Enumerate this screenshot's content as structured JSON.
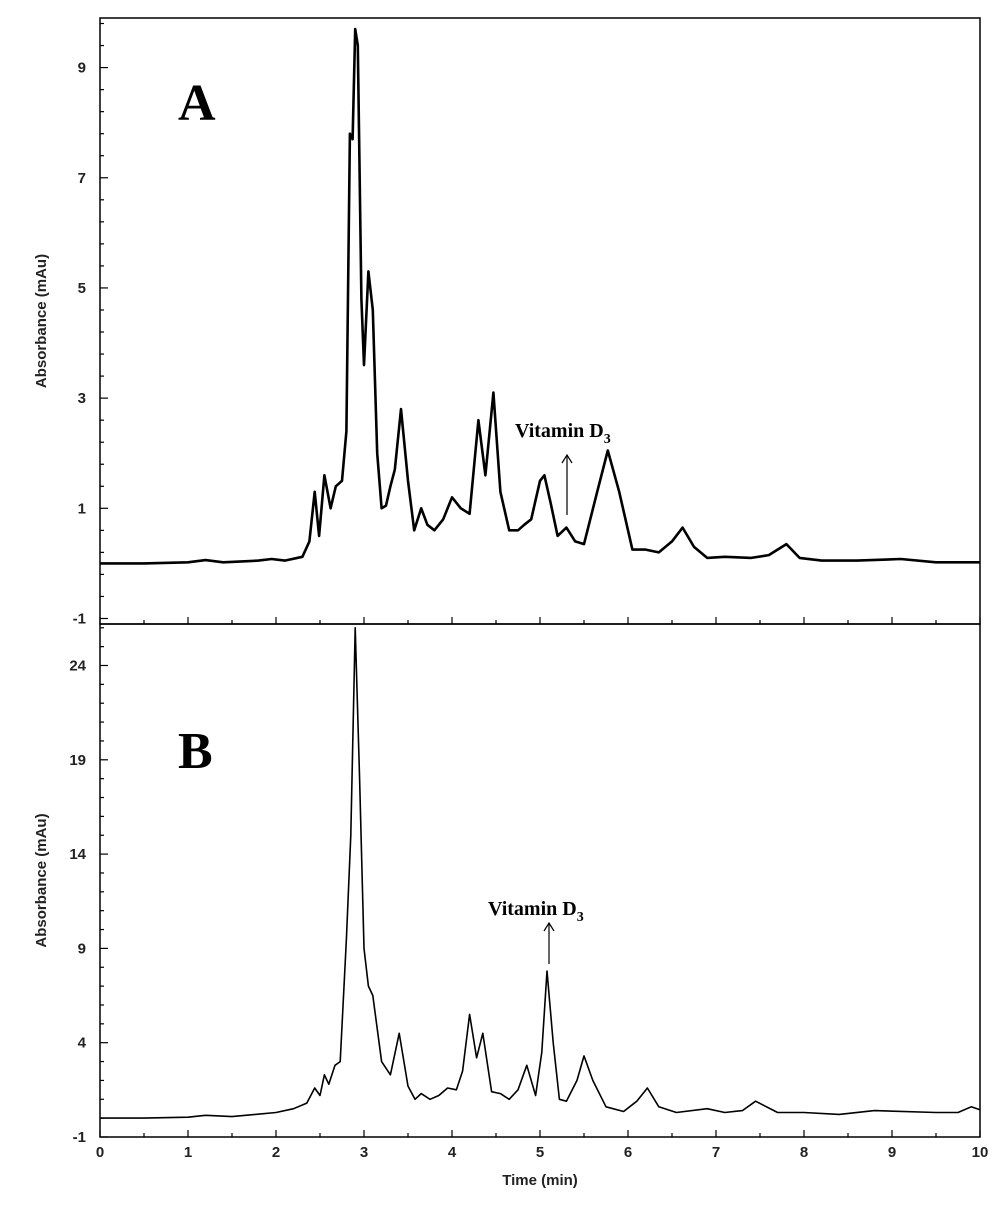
{
  "chart_data": [
    {
      "type": "line",
      "panel_label": "A",
      "xlabel": "",
      "ylabel": "Absorbance  (mAu)",
      "xlim": [
        0,
        10
      ],
      "ylim": [
        -1.1,
        9.9
      ],
      "y_ticks": [
        -1,
        1,
        3,
        5,
        7,
        9
      ],
      "x_ticks": [],
      "grid": false,
      "annotation": {
        "text": "Vitamin  D",
        "subscript": "3",
        "x": 5.3,
        "y": 0.65
      },
      "series": [
        {
          "x": [
            0,
            0.5,
            1.0,
            1.2,
            1.4,
            1.8,
            1.95,
            2.1,
            2.3,
            2.38,
            2.44,
            2.49,
            2.55,
            2.62,
            2.68,
            2.75,
            2.8,
            2.84,
            2.87,
            2.9,
            2.93,
            2.97,
            3.0,
            3.05,
            3.1,
            3.15,
            3.2,
            3.25,
            3.3,
            3.35,
            3.42,
            3.5,
            3.57,
            3.65,
            3.72,
            3.8,
            3.9,
            4.0,
            4.1,
            4.2,
            4.3,
            4.38,
            4.47,
            4.55,
            4.65,
            4.75,
            4.82,
            4.9,
            5.0,
            5.05,
            5.12,
            5.2,
            5.3,
            5.4,
            5.5,
            5.65,
            5.77,
            5.9,
            6.05,
            6.2,
            6.35,
            6.5,
            6.62,
            6.75,
            6.9,
            7.1,
            7.4,
            7.6,
            7.8,
            7.95,
            8.2,
            8.6,
            9.1,
            9.5,
            10.0
          ],
          "y": [
            0.0,
            0.0,
            0.02,
            0.06,
            0.02,
            0.05,
            0.08,
            0.05,
            0.12,
            0.4,
            1.3,
            0.5,
            1.6,
            1.0,
            1.4,
            1.5,
            2.4,
            7.8,
            7.7,
            9.7,
            9.4,
            4.8,
            3.6,
            5.3,
            4.6,
            2.0,
            1.0,
            1.05,
            1.4,
            1.7,
            2.8,
            1.5,
            0.6,
            1.0,
            0.7,
            0.6,
            0.8,
            1.2,
            1.0,
            0.9,
            2.6,
            1.6,
            3.1,
            1.3,
            0.6,
            0.6,
            0.7,
            0.8,
            1.5,
            1.6,
            1.1,
            0.5,
            0.65,
            0.4,
            0.35,
            1.3,
            2.05,
            1.3,
            0.25,
            0.25,
            0.2,
            0.4,
            0.65,
            0.3,
            0.1,
            0.12,
            0.1,
            0.15,
            0.35,
            0.1,
            0.05,
            0.05,
            0.08,
            0.02,
            0.02
          ]
        }
      ]
    },
    {
      "type": "line",
      "panel_label": "B",
      "xlabel": "Time (min)",
      "ylabel": "Absorbance (mAu)",
      "xlim": [
        0,
        10
      ],
      "ylim": [
        -1,
        26.2
      ],
      "y_ticks": [
        -1,
        4,
        9,
        14,
        19,
        24
      ],
      "x_ticks": [
        0,
        1,
        2,
        3,
        4,
        5,
        6,
        7,
        8,
        9,
        10
      ],
      "grid": false,
      "annotation": {
        "text": "Vitamin  D",
        "subscript": "3",
        "x": 5.08,
        "y": 7.8
      },
      "series": [
        {
          "x": [
            0,
            0.5,
            1.0,
            1.2,
            1.5,
            2.0,
            2.2,
            2.35,
            2.44,
            2.5,
            2.55,
            2.6,
            2.67,
            2.73,
            2.8,
            2.85,
            2.9,
            2.95,
            3.0,
            3.05,
            3.1,
            3.2,
            3.3,
            3.4,
            3.5,
            3.58,
            3.65,
            3.75,
            3.85,
            3.95,
            4.05,
            4.12,
            4.2,
            4.28,
            4.35,
            4.45,
            4.55,
            4.65,
            4.75,
            4.85,
            4.95,
            5.02,
            5.08,
            5.15,
            5.22,
            5.3,
            5.42,
            5.5,
            5.6,
            5.75,
            5.95,
            6.1,
            6.22,
            6.35,
            6.55,
            6.9,
            7.1,
            7.3,
            7.45,
            7.7,
            8.0,
            8.4,
            8.8,
            9.5,
            9.75,
            9.9,
            10.0
          ],
          "y": [
            0.0,
            0.0,
            0.05,
            0.15,
            0.08,
            0.3,
            0.5,
            0.8,
            1.6,
            1.2,
            2.3,
            1.8,
            2.8,
            3.0,
            9.5,
            15.0,
            26.0,
            18.0,
            9.0,
            7.0,
            6.5,
            3.0,
            2.3,
            4.5,
            1.7,
            1.0,
            1.3,
            1.0,
            1.2,
            1.6,
            1.5,
            2.5,
            5.5,
            3.2,
            4.5,
            1.4,
            1.3,
            1.0,
            1.5,
            2.8,
            1.2,
            3.5,
            7.8,
            4.0,
            1.0,
            0.9,
            2.0,
            3.3,
            2.0,
            0.6,
            0.35,
            0.9,
            1.6,
            0.6,
            0.3,
            0.5,
            0.3,
            0.4,
            0.9,
            0.3,
            0.3,
            0.2,
            0.4,
            0.3,
            0.3,
            0.6,
            0.45
          ]
        }
      ]
    }
  ]
}
